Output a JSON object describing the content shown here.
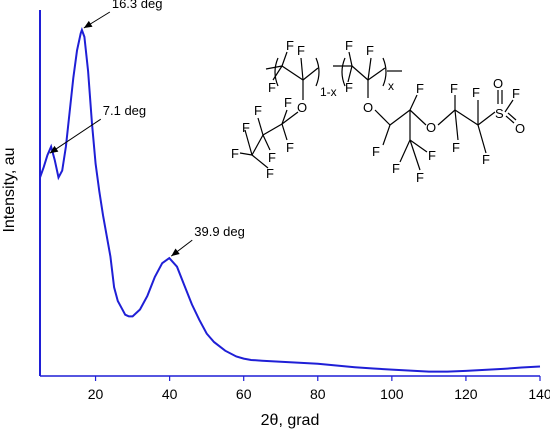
{
  "chart_data": {
    "type": "line",
    "xlabel": "2θ, grad",
    "ylabel": "Intensity, au",
    "xlim": [
      5,
      140
    ],
    "x_ticks": [
      20,
      40,
      60,
      80,
      100,
      120,
      140
    ],
    "y_ticks": [],
    "grid": false,
    "legend": "none",
    "colors": {
      "line": "#1f1fd6",
      "axis": "#1f1fd6",
      "text": "#000000"
    },
    "series": [
      {
        "x": [
          5,
          6,
          7,
          8,
          9,
          10,
          11,
          12,
          13,
          14,
          15,
          16,
          16.3,
          17,
          18,
          19,
          20,
          21,
          22,
          23,
          24,
          25,
          26,
          27,
          28,
          29,
          30,
          32,
          34,
          36,
          38,
          39.9,
          42,
          44,
          46,
          48,
          50,
          52,
          55,
          58,
          60,
          62,
          65,
          70,
          75,
          80,
          85,
          90,
          95,
          100,
          105,
          110,
          115,
          120,
          125,
          130,
          135,
          140
        ],
        "values": [
          0.57,
          0.6,
          0.635,
          0.66,
          0.62,
          0.57,
          0.59,
          0.66,
          0.76,
          0.86,
          0.94,
          0.99,
          1.0,
          0.98,
          0.88,
          0.73,
          0.61,
          0.53,
          0.46,
          0.4,
          0.34,
          0.25,
          0.21,
          0.19,
          0.17,
          0.165,
          0.165,
          0.185,
          0.225,
          0.28,
          0.32,
          0.335,
          0.31,
          0.255,
          0.2,
          0.155,
          0.115,
          0.09,
          0.065,
          0.048,
          0.042,
          0.038,
          0.036,
          0.033,
          0.03,
          0.027,
          0.022,
          0.017,
          0.013,
          0.01,
          0.007,
          0.004,
          0.004,
          0.006,
          0.009,
          0.012,
          0.016,
          0.019
        ]
      }
    ],
    "annotations": [
      {
        "text": "16.3 deg",
        "x": 16.3,
        "y": 1.0
      },
      {
        "text": "7.1 deg",
        "x": 7.1,
        "y": 0.635
      },
      {
        "text": "39.9 deg",
        "x": 39.9,
        "y": 0.335
      }
    ]
  },
  "structure": {
    "subscripts": {
      "one_minus_x": "1-x",
      "x": "x"
    },
    "atoms": {
      "F": "F",
      "O": "O",
      "S": "S"
    }
  }
}
